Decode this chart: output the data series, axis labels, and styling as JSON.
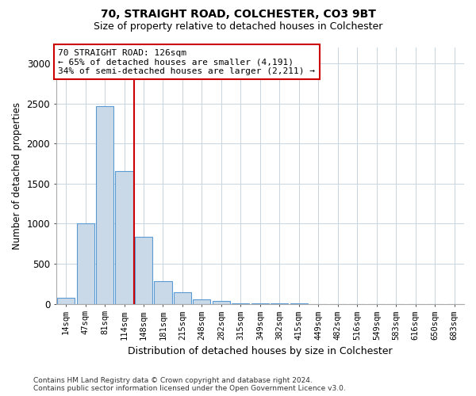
{
  "title1": "70, STRAIGHT ROAD, COLCHESTER, CO3 9BT",
  "title2": "Size of property relative to detached houses in Colchester",
  "xlabel": "Distribution of detached houses by size in Colchester",
  "ylabel": "Number of detached properties",
  "categories": [
    "14sqm",
    "47sqm",
    "81sqm",
    "114sqm",
    "148sqm",
    "181sqm",
    "215sqm",
    "248sqm",
    "282sqm",
    "315sqm",
    "349sqm",
    "382sqm",
    "415sqm",
    "449sqm",
    "482sqm",
    "516sqm",
    "549sqm",
    "583sqm",
    "616sqm",
    "650sqm",
    "683sqm"
  ],
  "values": [
    75,
    1000,
    2470,
    1660,
    840,
    280,
    140,
    55,
    30,
    10,
    5,
    3,
    2,
    0,
    0,
    0,
    0,
    0,
    0,
    0,
    0
  ],
  "bar_color": "#c9d9e8",
  "bar_edge_color": "#5b9bd5",
  "vline_color": "#cc0000",
  "vline_index": 3,
  "annotation_line1": "70 STRAIGHT ROAD: 126sqm",
  "annotation_line2": "← 65% of detached houses are smaller (4,191)",
  "annotation_line3": "34% of semi-detached houses are larger (2,211) →",
  "annotation_box_edgecolor": "#cc0000",
  "annotation_box_facecolor": "#ffffff",
  "ylim": [
    0,
    3200
  ],
  "yticks": [
    0,
    500,
    1000,
    1500,
    2000,
    2500,
    3000
  ],
  "footnote1": "Contains HM Land Registry data © Crown copyright and database right 2024.",
  "footnote2": "Contains public sector information licensed under the Open Government Licence v3.0.",
  "bg_color": "#ffffff",
  "grid_color": "#c8d4de"
}
